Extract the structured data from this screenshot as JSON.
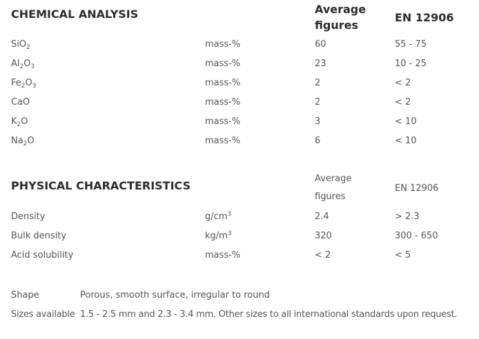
{
  "chemical": {
    "title": "CHEMICAL ANALYSIS",
    "avg_label_1": "Average",
    "avg_label_2": "figures",
    "std_label": "EN 12906",
    "rows": [
      {
        "base": "SiO",
        "sub": "2",
        "tail": "",
        "unit": "mass-%",
        "avg": "60",
        "std": "55 - 75"
      },
      {
        "base": "Al",
        "sub": "2",
        "tail": "O",
        "sub2": "3",
        "unit": "mass-%",
        "avg": "23",
        "std": "10 - 25"
      },
      {
        "base": "Fe",
        "sub": "2",
        "tail": "O",
        "sub2": "3",
        "unit": "mass-%",
        "avg": "2",
        "std": "< 2"
      },
      {
        "base": "CaO",
        "unit": "mass-%",
        "avg": "2",
        "std": "< 2"
      },
      {
        "base": "K",
        "sub": "2",
        "tail": "O",
        "unit": "mass-%",
        "avg": "3",
        "std": "< 10"
      },
      {
        "base": "Na",
        "sub": "2",
        "tail": "O",
        "unit": "mass-%",
        "avg": "6",
        "std": "< 10"
      }
    ]
  },
  "physical": {
    "title": "PHYSICAL CHARACTERISTICS",
    "avg_label_1": "Average",
    "avg_label_2": "figures",
    "std_label": "EN 12906",
    "rows": [
      {
        "name": "Density",
        "unit_base": "g/cm",
        "unit_sup": "3",
        "avg": "2.4",
        "std": "> 2.3"
      },
      {
        "name": "Bulk density",
        "unit_base": "kg/m",
        "unit_sup": "3",
        "avg": "320",
        "std": "300 - 650"
      },
      {
        "name": "Acid solubility",
        "unit_base": "mass-%",
        "unit_sup": "",
        "avg": "< 2",
        "std": "< 5"
      }
    ]
  },
  "info": {
    "shape_label": "Shape",
    "shape_value": "Porous, smooth surface, irregular to round",
    "sizes_label": "Sizes available",
    "sizes_value": "1.5 - 2.5 mm and 2.3 - 3.4 mm. Other sizes to all international standards upon request."
  }
}
